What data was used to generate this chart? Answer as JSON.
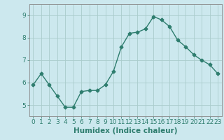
{
  "x": [
    0,
    1,
    2,
    3,
    4,
    5,
    6,
    7,
    8,
    9,
    10,
    11,
    12,
    13,
    14,
    15,
    16,
    17,
    18,
    19,
    20,
    21,
    22,
    23
  ],
  "y": [
    5.9,
    6.4,
    5.9,
    5.4,
    4.9,
    4.9,
    5.6,
    5.65,
    5.65,
    5.9,
    6.5,
    7.6,
    8.2,
    8.25,
    8.4,
    8.95,
    8.8,
    8.5,
    7.9,
    7.6,
    7.25,
    7.0,
    6.8,
    6.4
  ],
  "xlabel": "Humidex (Indice chaleur)",
  "line_color": "#2e7d6e",
  "marker": "D",
  "marker_size": 2.5,
  "bg_color": "#cce8ee",
  "grid_color": "#aacccc",
  "xlim": [
    -0.5,
    23.5
  ],
  "ylim": [
    4.5,
    9.5
  ],
  "yticks": [
    5,
    6,
    7,
    8,
    9
  ],
  "xticks": [
    0,
    1,
    2,
    3,
    4,
    5,
    6,
    7,
    8,
    9,
    10,
    11,
    12,
    13,
    14,
    15,
    16,
    17,
    18,
    19,
    20,
    21,
    22,
    23
  ],
  "tick_fontsize": 6.5,
  "xlabel_fontsize": 7.5,
  "spine_color": "#888888",
  "tick_color": "#2e7d6e"
}
